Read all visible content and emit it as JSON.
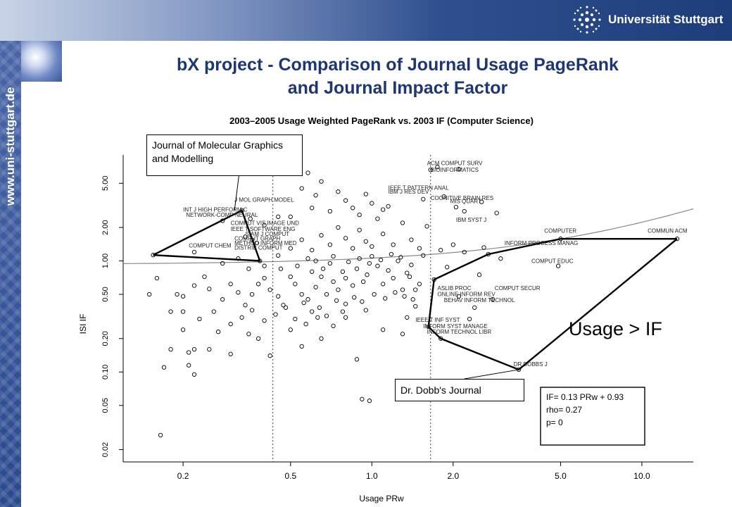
{
  "header": {
    "university_name": "Universität Stuttgart",
    "sidebar_url": "www.uni-stuttgart.de"
  },
  "slide": {
    "title_line1": "bX project - Comparison of Journal Usage PageRank",
    "title_line2": "and Journal Impact Factor"
  },
  "callouts": {
    "journal_molecular": "Journal of Molecular Graphics and Modelling",
    "dobbs": "Dr. Dobb's Journal",
    "usage_gt_if": "Usage > IF"
  },
  "chart_data": {
    "type": "scatter",
    "title": "2003–2005 Usage Weighted PageRank vs. 2003 IF (Computer Science)",
    "xlabel": "Usage PRw",
    "ylabel": "ISI IF",
    "xscale": "log",
    "yscale": "log",
    "xlim": [
      0.12,
      15.5
    ],
    "ylim": [
      0.0155,
      9.0
    ],
    "xticks": [
      0.2,
      0.5,
      1.0,
      2.0,
      5.0,
      10.0
    ],
    "xtick_labels": [
      "0.2",
      "0.5",
      "1.0",
      "2.0",
      "5.0",
      "10.0"
    ],
    "yticks": [
      0.02,
      0.05,
      0.1,
      0.2,
      0.5,
      1.0,
      2.0,
      5.0
    ],
    "ytick_labels": [
      "0.02",
      "0.05",
      "0.10",
      "0.20",
      "0.50",
      "1.00",
      "2.00",
      "5.00"
    ],
    "vlines": [
      0.43,
      1.65
    ],
    "fit_line": {
      "intercept": 0.93,
      "slope": 0.13
    },
    "stats_legend": [
      "IF= 0.13 PRw + 0.93",
      "rho= 0.27",
      "p= 0"
    ],
    "hull_left": [
      [
        0.155,
        1.13
      ],
      [
        0.33,
        2.85
      ],
      [
        0.385,
        1.0
      ],
      [
        0.155,
        1.13
      ]
    ],
    "hull_right": [
      [
        13.5,
        1.58
      ],
      [
        5.0,
        1.58
      ],
      [
        2.7,
        1.15
      ],
      [
        1.7,
        0.68
      ],
      [
        1.62,
        0.255
      ],
      [
        1.8,
        0.2
      ],
      [
        3.5,
        0.105
      ],
      [
        13.5,
        1.58
      ]
    ],
    "annotations": [
      {
        "text": "ACM COMPUT SURV",
        "x": 1.6,
        "y": 7.6
      },
      {
        "text": "BIOINFORMATICS",
        "x": 1.65,
        "y": 6.6
      },
      {
        "text": "IEEE T PATTERN ANAL",
        "x": 1.15,
        "y": 4.55
      },
      {
        "text": "IBM J RES DEV",
        "x": 1.15,
        "y": 4.2
      },
      {
        "text": "COGNITIVE BRAIN RES",
        "x": 1.65,
        "y": 3.7
      },
      {
        "text": "MIS QUART",
        "x": 1.95,
        "y": 3.45
      },
      {
        "text": "IBM SYST J",
        "x": 2.05,
        "y": 2.35
      },
      {
        "text": "J MOL GRAPH MODEL",
        "x": 0.31,
        "y": 3.55
      },
      {
        "text": "INT J HIGH PERFORM C",
        "x": 0.2,
        "y": 2.9
      },
      {
        "text": "NETWORK-COMP NEURAL",
        "x": 0.205,
        "y": 2.6
      },
      {
        "text": "COMPUT VIS IMAGE UND",
        "x": 0.3,
        "y": 2.2
      },
      {
        "text": "IEEE T SOFTWARE ENG",
        "x": 0.3,
        "y": 1.95
      },
      {
        "text": "SIAM J COMPUT",
        "x": 0.34,
        "y": 1.75
      },
      {
        "text": "COMPUT GRAPH",
        "x": 0.31,
        "y": 1.6
      },
      {
        "text": "METHOD INFORM MED",
        "x": 0.31,
        "y": 1.45
      },
      {
        "text": "DISTRIB COMPUT",
        "x": 0.31,
        "y": 1.32
      },
      {
        "text": "COMPUT CHEM",
        "x": 0.21,
        "y": 1.38
      },
      {
        "text": "COMPUTER",
        "x": 4.35,
        "y": 1.88
      },
      {
        "text": "COMMUN ACM",
        "x": 10.5,
        "y": 1.88
      },
      {
        "text": "INFORM PROCESS MANAG",
        "x": 3.1,
        "y": 1.45
      },
      {
        "text": "COMPUT EDUC",
        "x": 3.9,
        "y": 1.0
      },
      {
        "text": "ASLIB PROC",
        "x": 1.75,
        "y": 0.57
      },
      {
        "text": "ONLINE INFORM REV",
        "x": 1.75,
        "y": 0.505
      },
      {
        "text": "COMPUT SECUR",
        "x": 2.85,
        "y": 0.57
      },
      {
        "text": "BEHAV INFORM TECHNOL",
        "x": 1.85,
        "y": 0.445
      },
      {
        "text": "IEEE T INF SYST",
        "x": 1.45,
        "y": 0.295
      },
      {
        "text": "INFORM SYST MANAGE",
        "x": 1.55,
        "y": 0.26
      },
      {
        "text": "INFORM TECHNOL LIBR",
        "x": 1.6,
        "y": 0.23
      },
      {
        "text": "DR DOBBS J",
        "x": 3.35,
        "y": 0.118
      }
    ],
    "points": [
      [
        1.65,
        6.6
      ],
      [
        1.75,
        7.0
      ],
      [
        2.1,
        6.7
      ],
      [
        1.15,
        3.1
      ],
      [
        1.85,
        3.8
      ],
      [
        1.55,
        3.6
      ],
      [
        2.05,
        3.05
      ],
      [
        2.55,
        3.4
      ],
      [
        2.2,
        2.8
      ],
      [
        2.9,
        2.7
      ],
      [
        0.33,
        2.85
      ],
      [
        0.28,
        2.3
      ],
      [
        0.355,
        2.4
      ],
      [
        0.34,
        1.65
      ],
      [
        0.36,
        1.55
      ],
      [
        0.375,
        1.45
      ],
      [
        0.385,
        1.0
      ],
      [
        0.155,
        1.13
      ],
      [
        0.22,
        1.2
      ],
      [
        13.5,
        1.58
      ],
      [
        5.0,
        1.58
      ],
      [
        2.7,
        1.15
      ],
      [
        4.9,
        0.9
      ],
      [
        1.7,
        0.68
      ],
      [
        1.62,
        0.255
      ],
      [
        1.8,
        0.2
      ],
      [
        2.8,
        0.45
      ],
      [
        3.5,
        0.105
      ],
      [
        0.18,
        0.35
      ],
      [
        0.17,
        0.11
      ],
      [
        0.2,
        0.24
      ],
      [
        0.22,
        0.16
      ],
      [
        0.165,
        0.027
      ],
      [
        0.21,
        0.15
      ],
      [
        0.21,
        0.115
      ],
      [
        0.22,
        0.095
      ],
      [
        0.25,
        0.16
      ],
      [
        0.3,
        0.145
      ],
      [
        0.35,
        0.22
      ],
      [
        0.38,
        0.2
      ],
      [
        0.42,
        0.14
      ],
      [
        0.55,
        0.17
      ],
      [
        0.88,
        0.13
      ],
      [
        0.92,
        0.057
      ],
      [
        0.98,
        0.055
      ],
      [
        0.65,
        0.2
      ],
      [
        0.72,
        0.26
      ],
      [
        0.8,
        0.31
      ],
      [
        0.95,
        0.36
      ],
      [
        1.1,
        0.24
      ],
      [
        1.3,
        0.22
      ],
      [
        1.35,
        0.31
      ],
      [
        1.45,
        0.39
      ],
      [
        0.19,
        0.5
      ],
      [
        0.2,
        0.48
      ],
      [
        0.22,
        0.6
      ],
      [
        0.24,
        0.72
      ],
      [
        0.25,
        0.56
      ],
      [
        0.28,
        0.45
      ],
      [
        0.3,
        0.62
      ],
      [
        0.32,
        0.52
      ],
      [
        0.34,
        0.4
      ],
      [
        0.36,
        0.5
      ],
      [
        0.38,
        0.62
      ],
      [
        0.4,
        0.7
      ],
      [
        0.42,
        0.55
      ],
      [
        0.45,
        0.48
      ],
      [
        0.47,
        0.4
      ],
      [
        0.5,
        0.72
      ],
      [
        0.52,
        0.62
      ],
      [
        0.55,
        0.5
      ],
      [
        0.58,
        0.45
      ],
      [
        0.6,
        0.8
      ],
      [
        0.62,
        0.58
      ],
      [
        0.65,
        0.72
      ],
      [
        0.68,
        0.5
      ],
      [
        0.7,
        0.95
      ],
      [
        0.72,
        0.65
      ],
      [
        0.75,
        0.55
      ],
      [
        0.78,
        0.8
      ],
      [
        0.8,
        0.7
      ],
      [
        0.82,
        0.98
      ],
      [
        0.85,
        0.6
      ],
      [
        0.88,
        0.85
      ],
      [
        0.9,
        1.05
      ],
      [
        0.93,
        0.65
      ],
      [
        0.96,
        0.75
      ],
      [
        1.0,
        1.1
      ],
      [
        1.05,
        0.9
      ],
      [
        1.1,
        0.62
      ],
      [
        1.15,
        0.82
      ],
      [
        1.2,
        0.7
      ],
      [
        1.25,
        1.0
      ],
      [
        1.3,
        0.55
      ],
      [
        1.35,
        0.78
      ],
      [
        1.4,
        0.92
      ],
      [
        1.5,
        0.62
      ],
      [
        1.55,
        1.12
      ],
      [
        0.45,
        1.12
      ],
      [
        0.5,
        1.3
      ],
      [
        0.55,
        1.55
      ],
      [
        0.6,
        1.25
      ],
      [
        0.65,
        1.7
      ],
      [
        0.7,
        1.4
      ],
      [
        0.75,
        2.0
      ],
      [
        0.8,
        1.6
      ],
      [
        0.85,
        1.3
      ],
      [
        0.9,
        1.9
      ],
      [
        0.95,
        1.5
      ],
      [
        1.0,
        1.35
      ],
      [
        1.05,
        2.4
      ],
      [
        1.1,
        1.75
      ],
      [
        1.2,
        1.4
      ],
      [
        1.3,
        2.2
      ],
      [
        1.4,
        1.55
      ],
      [
        1.5,
        1.3
      ],
      [
        1.6,
        2.05
      ],
      [
        0.5,
        2.5
      ],
      [
        0.6,
        3.0
      ],
      [
        0.7,
        2.8
      ],
      [
        0.8,
        3.5
      ],
      [
        0.9,
        2.6
      ],
      [
        1.0,
        3.3
      ],
      [
        1.1,
        2.9
      ],
      [
        0.4,
        2.1
      ],
      [
        0.45,
        2.5
      ],
      [
        0.55,
        4.5
      ],
      [
        0.62,
        3.9
      ],
      [
        0.75,
        4.2
      ],
      [
        0.85,
        3.0
      ],
      [
        0.95,
        4.0
      ],
      [
        0.65,
        5.2
      ],
      [
        0.58,
        6.2
      ],
      [
        0.26,
        0.35
      ],
      [
        0.23,
        0.3
      ],
      [
        0.27,
        0.23
      ],
      [
        0.3,
        0.27
      ],
      [
        0.33,
        0.31
      ],
      [
        0.36,
        0.36
      ],
      [
        0.4,
        0.29
      ],
      [
        0.44,
        0.33
      ],
      [
        0.48,
        0.38
      ],
      [
        0.52,
        0.3
      ],
      [
        0.56,
        0.42
      ],
      [
        0.6,
        0.35
      ],
      [
        0.64,
        0.38
      ],
      [
        0.68,
        0.32
      ],
      [
        0.74,
        0.44
      ],
      [
        0.8,
        0.41
      ],
      [
        0.86,
        0.47
      ],
      [
        0.92,
        0.43
      ],
      [
        1.02,
        0.5
      ],
      [
        1.12,
        0.46
      ],
      [
        1.22,
        0.52
      ],
      [
        1.32,
        0.48
      ],
      [
        1.42,
        0.45
      ],
      [
        0.5,
        0.24
      ],
      [
        0.57,
        0.27
      ],
      [
        0.63,
        0.31
      ],
      [
        0.78,
        0.35
      ],
      [
        2.3,
        0.3
      ],
      [
        2.4,
        0.38
      ],
      [
        2.1,
        0.48
      ],
      [
        2.6,
        1.32
      ],
      [
        3.0,
        1.05
      ],
      [
        2.2,
        1.2
      ],
      [
        2.0,
        1.4
      ],
      [
        1.8,
        1.25
      ],
      [
        1.9,
        0.88
      ],
      [
        2.5,
        0.75
      ],
      [
        0.35,
        0.85
      ],
      [
        0.4,
        0.9
      ],
      [
        0.32,
        1.05
      ],
      [
        0.28,
        0.95
      ],
      [
        0.46,
        0.85
      ],
      [
        0.53,
        0.9
      ],
      [
        0.62,
        1.0
      ],
      [
        0.66,
        0.85
      ],
      [
        0.72,
        1.1
      ],
      [
        0.58,
        1.05
      ],
      [
        0.98,
        0.95
      ],
      [
        1.08,
        1.02
      ],
      [
        1.18,
        1.15
      ],
      [
        1.28,
        1.08
      ],
      [
        1.38,
        0.72
      ],
      [
        1.45,
        0.55
      ],
      [
        0.18,
        0.16
      ],
      [
        0.15,
        0.5
      ],
      [
        0.16,
        0.7
      ],
      [
        0.2,
        0.35
      ]
    ]
  }
}
